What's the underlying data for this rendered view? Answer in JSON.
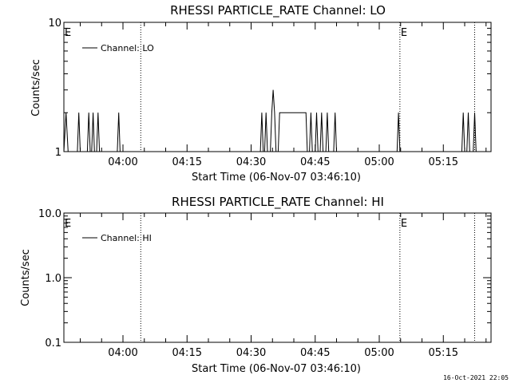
{
  "chart_data": [
    {
      "type": "line",
      "title": "RHESSI PARTICLE_RATE Channel: LO",
      "xlabel": "Start Time (06-Nov-07 03:46:10)",
      "ylabel": "Counts/sec",
      "yscale": "log",
      "ylim": [
        1,
        10
      ],
      "y_ticks": [
        "1",
        "10"
      ],
      "x_range": [
        "03:46:10",
        "05:26:10"
      ],
      "x_ticks": [
        "04:00",
        "04:15",
        "04:30",
        "04:45",
        "05:00",
        "05:15"
      ],
      "legend": "Channel: LO",
      "legend_position": "top-left",
      "grid": false,
      "markers": [
        {
          "label": "E",
          "time": "03:46:10"
        },
        {
          "label": "",
          "time": "04:04:10"
        },
        {
          "label": "E",
          "time": "05:04:50"
        },
        {
          "label": "",
          "time": "05:22:20"
        }
      ],
      "series": [
        {
          "name": "Channel: LO",
          "points": [
            [
              "03:46:10",
              1
            ],
            [
              "03:46:40",
              2
            ],
            [
              "03:47:10",
              1
            ],
            [
              "03:49:20",
              1
            ],
            [
              "03:49:40",
              2
            ],
            [
              "03:50:00",
              1
            ],
            [
              "03:51:40",
              1
            ],
            [
              "03:52:00",
              2
            ],
            [
              "03:52:20",
              1
            ],
            [
              "03:52:40",
              1
            ],
            [
              "03:53:00",
              2
            ],
            [
              "03:53:20",
              1
            ],
            [
              "03:53:50",
              1
            ],
            [
              "03:54:10",
              2
            ],
            [
              "03:54:30",
              1
            ],
            [
              "03:58:40",
              1
            ],
            [
              "03:59:00",
              2
            ],
            [
              "03:59:20",
              1
            ],
            [
              "04:32:10",
              1
            ],
            [
              "04:32:30",
              2
            ],
            [
              "04:32:50",
              1
            ],
            [
              "04:33:10",
              1
            ],
            [
              "04:33:30",
              2
            ],
            [
              "04:33:50",
              1
            ],
            [
              "04:34:30",
              1
            ],
            [
              "04:34:50",
              2
            ],
            [
              "04:35:10",
              3
            ],
            [
              "04:35:30",
              2
            ],
            [
              "04:35:50",
              1
            ],
            [
              "04:36:20",
              1
            ],
            [
              "04:36:40",
              2
            ],
            [
              "04:42:50",
              2
            ],
            [
              "04:43:10",
              1
            ],
            [
              "04:43:40",
              1
            ],
            [
              "04:44:00",
              2
            ],
            [
              "04:44:20",
              1
            ],
            [
              "04:45:00",
              1
            ],
            [
              "04:45:20",
              2
            ],
            [
              "04:45:40",
              1
            ],
            [
              "04:46:10",
              1
            ],
            [
              "04:46:30",
              2
            ],
            [
              "04:46:50",
              1
            ],
            [
              "04:47:30",
              1
            ],
            [
              "04:47:50",
              2
            ],
            [
              "04:48:10",
              1
            ],
            [
              "04:49:20",
              1
            ],
            [
              "04:49:40",
              2
            ],
            [
              "04:50:00",
              1
            ],
            [
              "05:04:10",
              1
            ],
            [
              "05:04:30",
              2
            ],
            [
              "05:04:50",
              1
            ],
            [
              "05:19:20",
              1
            ],
            [
              "05:19:40",
              2
            ],
            [
              "05:20:00",
              1
            ],
            [
              "05:20:30",
              1
            ],
            [
              "05:20:50",
              2
            ],
            [
              "05:21:10",
              1
            ],
            [
              "05:22:00",
              1
            ],
            [
              "05:22:20",
              2
            ],
            [
              "05:22:40",
              1
            ]
          ]
        }
      ]
    },
    {
      "type": "line",
      "title": "RHESSI PARTICLE_RATE Channel: HI",
      "xlabel": "Start Time (06-Nov-07 03:46:10)",
      "ylabel": "Counts/sec",
      "yscale": "log",
      "ylim": [
        0.1,
        10
      ],
      "y_ticks": [
        "10.0",
        "1.0",
        "0.1"
      ],
      "x_range": [
        "03:46:10",
        "05:26:10"
      ],
      "x_ticks": [
        "04:00",
        "04:15",
        "04:30",
        "04:45",
        "05:00",
        "05:15"
      ],
      "legend": "Channel: HI",
      "legend_position": "top-left",
      "grid": false,
      "markers": [
        {
          "label": "E",
          "time": "03:46:10"
        },
        {
          "label": "",
          "time": "04:04:10"
        },
        {
          "label": "E",
          "time": "05:04:50"
        },
        {
          "label": "",
          "time": "05:22:20"
        }
      ],
      "series": [
        {
          "name": "Channel: HI",
          "points": []
        }
      ]
    }
  ],
  "footer": {
    "timestamp": "16-Oct-2021 22:05"
  }
}
